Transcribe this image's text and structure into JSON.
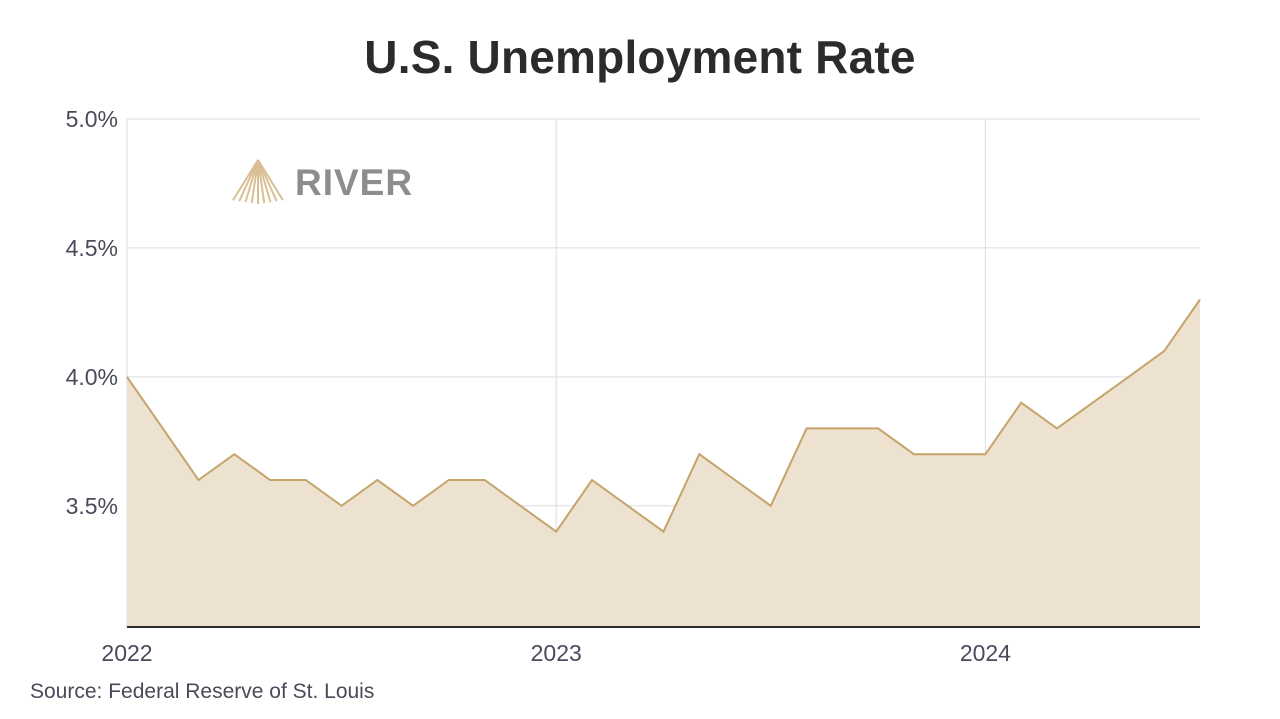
{
  "header": {
    "title": "U.S. Unemployment Rate"
  },
  "footer": {
    "source": "Source: Federal Reserve of St. Louis"
  },
  "logo": {
    "text": "RIVER",
    "color": "#8d8d8d",
    "mark_color": "#d9bf95"
  },
  "colors": {
    "line": "#c4a46b",
    "fill": "#ede2d0",
    "grid": "#dddddd",
    "axis": "#2b2b2b"
  },
  "chart_data": {
    "type": "area",
    "title": "U.S. Unemployment Rate",
    "xlabel": "",
    "ylabel": "",
    "x_ticks": [
      {
        "label": "2022",
        "value": "2022-01"
      },
      {
        "label": "2023",
        "value": "2023-01"
      },
      {
        "label": "2024",
        "value": "2024-01"
      }
    ],
    "y_ticks": [
      {
        "label": "3.5%",
        "value": 3.5
      },
      {
        "label": "4.0%",
        "value": 4.0
      },
      {
        "label": "4.5%",
        "value": 4.5
      },
      {
        "label": "5.0%",
        "value": 5.0
      }
    ],
    "ylim": [
      3.03,
      5.0
    ],
    "xlim": [
      "2022-01",
      "2024-07"
    ],
    "grid": true,
    "series": [
      {
        "x": [
          "2022-01",
          "2022-02",
          "2022-03",
          "2022-04",
          "2022-05",
          "2022-06",
          "2022-07",
          "2022-08",
          "2022-09",
          "2022-10",
          "2022-11",
          "2022-12",
          "2023-01",
          "2023-02",
          "2023-03",
          "2023-04",
          "2023-05",
          "2023-06",
          "2023-07",
          "2023-08",
          "2023-09",
          "2023-10",
          "2023-11",
          "2023-12",
          "2024-01",
          "2024-02",
          "2024-03",
          "2024-04",
          "2024-05",
          "2024-06",
          "2024-07"
        ],
        "values": [
          4.0,
          3.8,
          3.6,
          3.7,
          3.6,
          3.6,
          3.5,
          3.6,
          3.5,
          3.6,
          3.6,
          3.5,
          3.4,
          3.6,
          3.5,
          3.4,
          3.7,
          3.6,
          3.5,
          3.8,
          3.8,
          3.8,
          3.7,
          3.7,
          3.7,
          3.9,
          3.8,
          3.9,
          4.0,
          4.1,
          4.3
        ]
      }
    ]
  }
}
